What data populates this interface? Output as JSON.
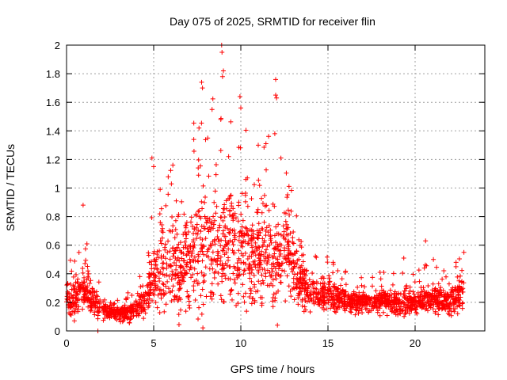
{
  "chart_data": {
    "type": "scatter",
    "title": "Day 075 of 2025, SRMTID for receiver flin",
    "xlabel": "GPS time / hours",
    "ylabel": "SRMTID / TECUs",
    "xlim": [
      0,
      24
    ],
    "ylim": [
      0,
      2
    ],
    "xticks": [
      0,
      5,
      10,
      15,
      20
    ],
    "yticks": [
      0,
      0.2,
      0.4,
      0.6,
      0.8,
      1,
      1.2,
      1.4,
      1.6,
      1.8,
      2
    ],
    "xtick_labels": [
      "0",
      "5",
      "10",
      "15",
      "20"
    ],
    "ytick_labels": [
      "0",
      "0.2",
      "0.4",
      "0.6",
      "0.8",
      "1",
      "1.2",
      "1.4",
      "1.6",
      "1.8",
      "2"
    ],
    "grid": true,
    "marker": "+",
    "marker_color": "#ff0000",
    "envelope": {
      "x": [
        0,
        0.5,
        1.0,
        1.5,
        2.0,
        2.5,
        3.0,
        3.5,
        4.0,
        4.5,
        5.0,
        5.5,
        6.0,
        6.5,
        7.0,
        7.5,
        8.0,
        8.5,
        9.0,
        9.5,
        10.0,
        10.5,
        11.0,
        11.5,
        12.0,
        12.5,
        13.0,
        13.5,
        14.0,
        14.5,
        15.0,
        15.5,
        16.0,
        16.5,
        17.0,
        17.5,
        18.0,
        18.5,
        19.0,
        19.5,
        20.0,
        20.5,
        21.0,
        21.5,
        22.0,
        22.5,
        22.8
      ],
      "median": [
        0.24,
        0.22,
        0.3,
        0.22,
        0.14,
        0.13,
        0.12,
        0.13,
        0.16,
        0.22,
        0.38,
        0.42,
        0.45,
        0.48,
        0.5,
        0.55,
        0.58,
        0.6,
        0.65,
        0.62,
        0.6,
        0.58,
        0.55,
        0.5,
        0.5,
        0.55,
        0.45,
        0.35,
        0.28,
        0.25,
        0.26,
        0.24,
        0.22,
        0.2,
        0.2,
        0.2,
        0.21,
        0.2,
        0.2,
        0.2,
        0.21,
        0.22,
        0.22,
        0.22,
        0.2,
        0.25,
        0.3
      ],
      "spread": [
        0.08,
        0.08,
        0.12,
        0.08,
        0.05,
        0.04,
        0.04,
        0.05,
        0.05,
        0.08,
        0.15,
        0.18,
        0.2,
        0.25,
        0.25,
        0.28,
        0.28,
        0.3,
        0.3,
        0.28,
        0.28,
        0.28,
        0.25,
        0.25,
        0.25,
        0.22,
        0.18,
        0.12,
        0.08,
        0.07,
        0.08,
        0.07,
        0.06,
        0.05,
        0.05,
        0.05,
        0.06,
        0.06,
        0.07,
        0.06,
        0.06,
        0.07,
        0.07,
        0.07,
        0.06,
        0.08,
        0.1
      ]
    },
    "sample_count": 2400,
    "peaks": [
      {
        "x": 0.95,
        "y": 0.88
      },
      {
        "x": 4.9,
        "y": 1.21
      },
      {
        "x": 5.0,
        "y": 1.15
      },
      {
        "x": 7.3,
        "y": 1.34
      },
      {
        "x": 7.6,
        "y": 1.42
      },
      {
        "x": 7.75,
        "y": 1.74
      },
      {
        "x": 7.8,
        "y": 1.7
      },
      {
        "x": 8.35,
        "y": 1.55
      },
      {
        "x": 8.9,
        "y": 2.0
      },
      {
        "x": 8.92,
        "y": 1.95
      },
      {
        "x": 9.0,
        "y": 1.82
      },
      {
        "x": 8.95,
        "y": 1.78
      },
      {
        "x": 8.85,
        "y": 1.48
      },
      {
        "x": 9.95,
        "y": 1.64
      },
      {
        "x": 10.0,
        "y": 1.56
      },
      {
        "x": 12.0,
        "y": 1.76
      },
      {
        "x": 12.0,
        "y": 1.65
      },
      {
        "x": 12.05,
        "y": 1.63
      },
      {
        "x": 11.95,
        "y": 1.38
      },
      {
        "x": 12.3,
        "y": 1.21
      },
      {
        "x": 11.0,
        "y": 1.3
      },
      {
        "x": 8.1,
        "y": 1.35
      },
      {
        "x": 9.3,
        "y": 1.22
      },
      {
        "x": 6.1,
        "y": 1.16
      },
      {
        "x": 12.1,
        "y": 0.04
      },
      {
        "x": 1.8,
        "y": 0.0
      },
      {
        "x": 20.6,
        "y": 0.63
      },
      {
        "x": 19.35,
        "y": 0.51
      },
      {
        "x": 22.8,
        "y": 0.55
      },
      {
        "x": 16.0,
        "y": 0.41
      },
      {
        "x": 18.2,
        "y": 0.41
      },
      {
        "x": 21.05,
        "y": 0.5
      },
      {
        "x": 22.35,
        "y": 0.48
      }
    ]
  }
}
